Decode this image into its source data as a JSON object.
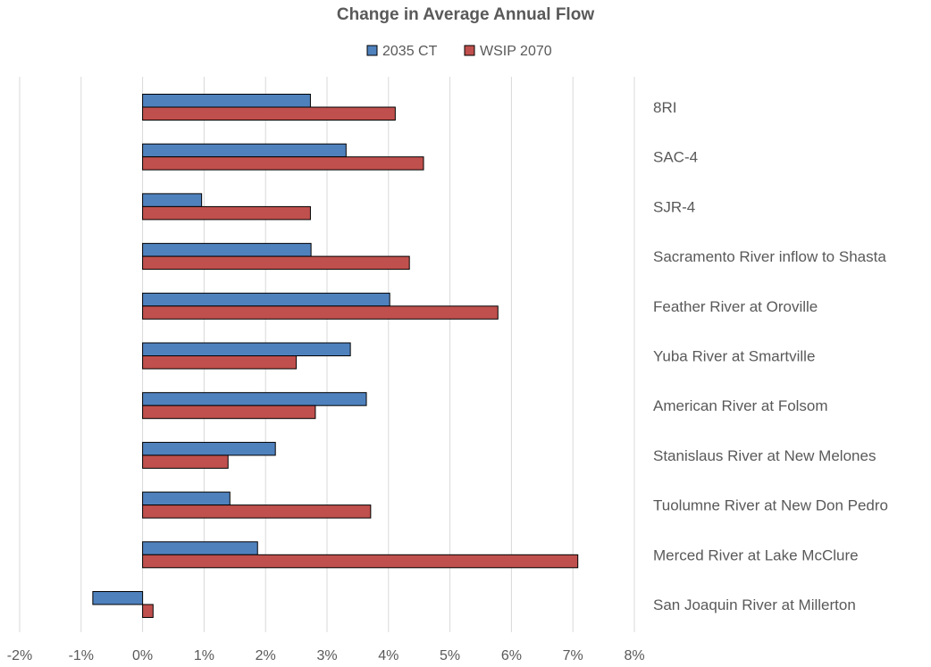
{
  "chart_data": {
    "type": "bar",
    "orientation": "horizontal",
    "title": "Change in Average Annual Flow",
    "xlabel": "",
    "ylabel": "",
    "xlim": [
      -0.02,
      0.08
    ],
    "x_ticks": [
      "-2%",
      "-1%",
      "0%",
      "1%",
      "2%",
      "3%",
      "4%",
      "5%",
      "6%",
      "7%",
      "8%"
    ],
    "grid": "vertical",
    "legend_position": "top",
    "categories": [
      "8RI",
      "SAC-4",
      "SJR-4",
      "Sacramento River inflow to Shasta",
      "Feather River at Oroville",
      "Yuba River at Smartville",
      "American River at Folsom",
      "Stanislaus River at New Melones",
      "Tuolumne River at New Don Pedro",
      "Merced River at Lake McClure",
      "San Joaquin River at Millerton"
    ],
    "series": [
      {
        "name": "2035 CT",
        "color": "#4f81bd",
        "values": [
          0.0273,
          0.0331,
          0.0096,
          0.0274,
          0.0402,
          0.0338,
          0.0364,
          0.0216,
          0.0142,
          0.0187,
          -0.0081
        ]
      },
      {
        "name": "WSIP 2070",
        "color": "#c0504d",
        "values": [
          0.0411,
          0.0457,
          0.0273,
          0.0434,
          0.0578,
          0.025,
          0.0281,
          0.0139,
          0.0371,
          0.0708,
          0.0017
        ]
      }
    ]
  }
}
